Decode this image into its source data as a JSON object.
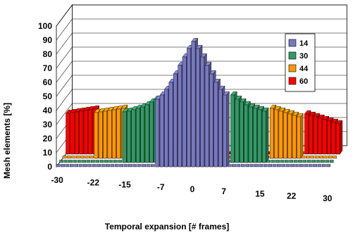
{
  "chart_data": {
    "type": "bar",
    "subtype": "3d-bar",
    "title": "",
    "xlabel": "Temporal expansion [# frames]",
    "ylabel": "Mesh elements [%]",
    "ylim": [
      0,
      100
    ],
    "y_ticks": [
      "0",
      "10",
      "20",
      "30",
      "40",
      "50",
      "60",
      "70",
      "80",
      "90",
      "100"
    ],
    "x_ticks": [
      "-30",
      "-22",
      "-15",
      "-7",
      "0",
      "7",
      "15",
      "22",
      "30"
    ],
    "x": [
      -30,
      -29,
      -28,
      -27,
      -26,
      -25,
      -24,
      -23,
      -22,
      -21,
      -20,
      -19,
      -18,
      -17,
      -16,
      -15,
      -14,
      -13,
      -12,
      -11,
      -10,
      -9,
      -8,
      -7,
      -6,
      -5,
      -4,
      -3,
      -2,
      -1,
      0,
      1,
      2,
      3,
      4,
      5,
      6,
      7,
      8,
      9,
      10,
      11,
      12,
      13,
      14,
      15,
      16,
      17,
      18,
      19,
      20,
      21,
      22,
      23,
      24,
      25,
      26,
      27,
      28,
      29,
      30
    ],
    "grid": true,
    "legend_position": "right",
    "series": [
      {
        "name": "14",
        "color": "#7878c0",
        "values": [
          0,
          0,
          0,
          0,
          0,
          0,
          0,
          0,
          0,
          0,
          0,
          0,
          0,
          0,
          0,
          0,
          0,
          0,
          0,
          0,
          0,
          0,
          0,
          0,
          0,
          0,
          0,
          0,
          0,
          0,
          0,
          0,
          0,
          0,
          0,
          0,
          0,
          0,
          0,
          0,
          0,
          0,
          0,
          0,
          0,
          0,
          0,
          0,
          0,
          0,
          0,
          0,
          0,
          0,
          0,
          0,
          0,
          0,
          0,
          0,
          0
        ]
      },
      {
        "name": "30",
        "color": "#339966",
        "values": [
          0,
          0,
          0,
          0,
          0,
          0,
          0,
          0,
          0,
          0,
          0,
          0,
          0,
          0,
          0,
          0,
          0,
          0,
          0,
          0,
          0,
          0,
          0,
          0,
          0,
          0,
          0,
          0,
          0,
          0,
          0,
          0,
          0,
          0,
          0,
          0,
          0,
          0,
          0,
          0,
          0,
          0,
          0,
          0,
          0,
          0,
          0,
          0,
          0,
          0,
          0,
          0,
          0,
          0,
          0,
          0,
          0,
          0,
          0,
          0,
          0
        ]
      },
      {
        "name": "44",
        "color": "#ff9900",
        "values": [
          0,
          0,
          0,
          0,
          0,
          0,
          0,
          0,
          0,
          0,
          0,
          0,
          0,
          0,
          0,
          0,
          0,
          0,
          0,
          0,
          0,
          0,
          0,
          0,
          0,
          0,
          0,
          0,
          0,
          0,
          0,
          0,
          0,
          0,
          0,
          0,
          0,
          0,
          0,
          0,
          0,
          0,
          0,
          0,
          0,
          0,
          0,
          0,
          0,
          0,
          0,
          0,
          0,
          0,
          0,
          0,
          0,
          0,
          0,
          0,
          0
        ]
      },
      {
        "name": "60",
        "color": "#ff0000",
        "values": [
          0,
          0,
          0,
          0,
          0,
          0,
          0,
          0,
          0,
          0,
          0,
          0,
          0,
          0,
          0,
          0,
          0,
          0,
          0,
          0,
          0,
          0,
          0,
          0,
          0,
          0,
          0,
          0,
          0,
          0,
          0,
          0,
          0,
          0,
          0,
          0,
          0,
          0,
          0,
          0,
          0,
          0,
          0,
          0,
          0,
          0,
          0,
          0,
          0,
          0,
          0,
          0,
          0,
          0,
          0,
          0,
          0,
          0,
          0,
          0,
          0
        ]
      }
    ],
    "visible_profile": {
      "x": [
        -30,
        -29,
        -28,
        -27,
        -26,
        -25,
        -24,
        -23,
        -22,
        -21,
        -20,
        -19,
        -18,
        -17,
        -16,
        -15,
        -14,
        -13,
        -12,
        -11,
        -10,
        -9,
        -8,
        -7,
        -6,
        -5,
        -4,
        -3,
        -2,
        -1,
        0,
        1,
        2,
        3,
        4,
        5,
        6,
        7,
        8,
        9,
        10,
        11,
        12,
        13,
        14,
        15,
        16,
        17,
        18,
        19,
        20,
        21,
        22,
        23,
        24,
        25,
        26,
        27,
        28,
        29,
        30
      ],
      "values": [
        29,
        29.5,
        30,
        30.5,
        31,
        31.5,
        32,
        32.5,
        33,
        33.5,
        34,
        34.5,
        35,
        35.5,
        36,
        36.5,
        37.5,
        38.5,
        39.5,
        41,
        43,
        45,
        48,
        51,
        55,
        60,
        66,
        72,
        78,
        84,
        89,
        84,
        78,
        72,
        66,
        60,
        55,
        51,
        48,
        45,
        43,
        41,
        39.5,
        38.5,
        37.5,
        36.5,
        35.5,
        34.5,
        33.5,
        32.5,
        31.5,
        30.5,
        29.5,
        28.5,
        27.5,
        26.5,
        25.5,
        24.5,
        23.5,
        22.5,
        21.5
      ],
      "owner_series": [
        "60",
        "60",
        "60",
        "60",
        "60",
        "60",
        "60",
        "44",
        "44",
        "44",
        "44",
        "44",
        "44",
        "44",
        "30",
        "30",
        "30",
        "30",
        "30",
        "30",
        "30",
        "30",
        "14",
        "14",
        "14",
        "14",
        "14",
        "14",
        "14",
        "14",
        "14",
        "14",
        "14",
        "14",
        "14",
        "14",
        "14",
        "14",
        "30",
        "30",
        "30",
        "30",
        "30",
        "30",
        "30",
        "30",
        "44",
        "44",
        "44",
        "44",
        "44",
        "44",
        "44",
        "60",
        "60",
        "60",
        "60",
        "60",
        "60",
        "60",
        "60"
      ]
    }
  }
}
